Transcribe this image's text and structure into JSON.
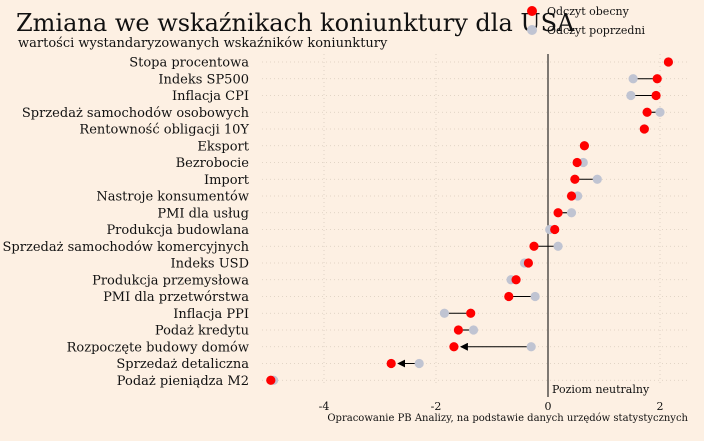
{
  "chart_data": {
    "type": "scatter",
    "title": "Zmiana we wskaźnikach koniunktury dla USA",
    "subtitle": "wartości wystandaryzowanych wskaźników koniunktury",
    "source": "Opracowanie PB Analizy, na podstawie danych urzędów statystycznych",
    "zero_line_label": "Poziom neutralny",
    "xlim": [
      -5,
      2.5
    ],
    "xticks": [
      -4,
      -2,
      0,
      2
    ],
    "legend_position": "top-right",
    "colors": {
      "current": "#ff0000",
      "previous": "#c0c4d2",
      "arrow": "#000000"
    },
    "series": [
      {
        "name": "Odczyt obecny",
        "key": "current"
      },
      {
        "name": "Odczyt poprzedni",
        "key": "previous"
      }
    ],
    "categories": [
      "Stopa procentowa",
      "Indeks SP500",
      "Inflacja CPI",
      "Sprzedaż samochodów osobowych",
      "Rentowność obligacji 10Y",
      "Eksport",
      "Bezrobocie",
      "Import",
      "Nastroje konsumentów",
      "PMI dla usług",
      "Produkcja budowlana",
      "Sprzedaż samochodów komercyjnych",
      "Indeks USD",
      "Produkcja przemysłowa",
      "PMI dla przetwórstwa",
      "Inflacja PPI",
      "Podaż kredytu",
      "Rozpoczęte budowy domów",
      "Sprzedaż detaliczna",
      "Podaż pieniądza M2"
    ],
    "current": [
      2.15,
      1.95,
      1.93,
      1.77,
      1.72,
      0.65,
      0.52,
      0.48,
      0.42,
      0.18,
      0.12,
      -0.25,
      -0.35,
      -0.57,
      -0.7,
      -1.38,
      -1.6,
      -1.68,
      -2.8,
      -4.95
    ],
    "previous": [
      2.15,
      1.52,
      1.48,
      2.0,
      1.72,
      0.65,
      0.63,
      0.88,
      0.53,
      0.42,
      0.03,
      0.18,
      -0.42,
      -0.66,
      -0.23,
      -1.85,
      -1.33,
      -0.3,
      -2.3,
      -4.9
    ],
    "arrows": [
      false,
      false,
      false,
      false,
      false,
      false,
      false,
      false,
      false,
      false,
      false,
      false,
      false,
      false,
      false,
      false,
      false,
      true,
      true,
      false
    ]
  }
}
